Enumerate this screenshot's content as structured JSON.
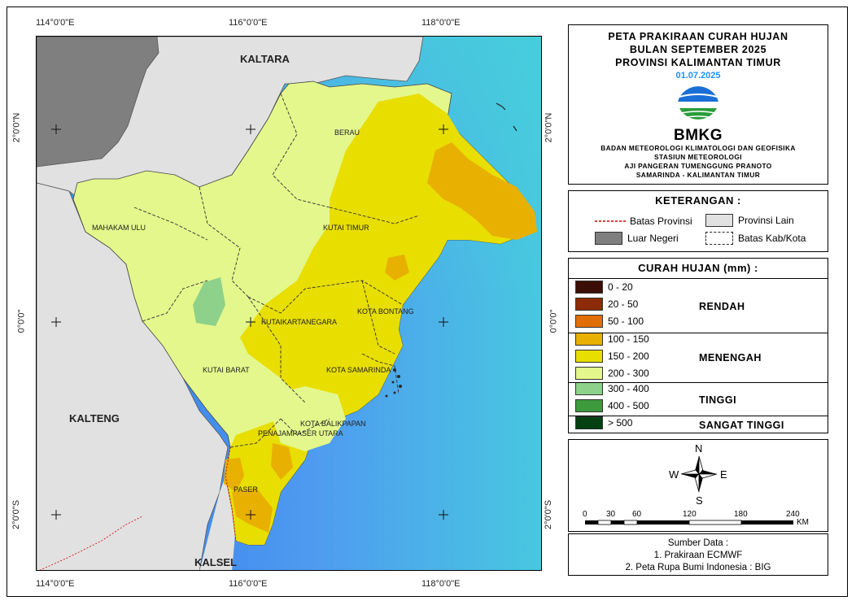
{
  "map": {
    "coords_top": [
      "114°0'0\"E",
      "116°0'0\"E",
      "118°0'0\"E"
    ],
    "coords_bottom": [
      "114°0'0\"E",
      "116°0'0\"E",
      "118°0'0\"E"
    ],
    "coords_left": [
      "2°0'0\"N",
      "0°0'0\"",
      "2°0'0\"S"
    ],
    "coords_right": [
      "2°0'0\"N",
      "0°0'0\"",
      "2°0'0\"S"
    ],
    "province_labels": {
      "kaltara": "KALTARA",
      "kalteng": "KALTENG",
      "kalsel": "KALSEL"
    },
    "regency_labels": {
      "berau": "BERAU",
      "mahakam_ulu": "MAHAKAM ULU",
      "kutai_timur": "KUTAI TIMUR",
      "kota_bontang": "KOTA BONTANG",
      "kutai_kartanegara": "KUTAIKARTANEGARA",
      "kutai_barat": "KUTAI BARAT",
      "kota_samarinda": "KOTA SAMARINDA",
      "kota_balikpapan": "KOTA BALIKPAPAN",
      "penajam_paser_utara": "PENAJAMPASER UTARA",
      "paser": "PASER"
    },
    "colors": {
      "sea": "#58a8f0",
      "other_province": "#e1e1e1",
      "foreign_country": "#828282"
    }
  },
  "title": {
    "line1": "PETA PRAKIRAAN CURAH HUJAN",
    "line2": "BULAN SEPTEMBER 2025",
    "line3": "PROVINSI KALIMANTAN TIMUR",
    "date": "01.07.2025",
    "logo_text": "BMKG",
    "inst1": "BADAN METEOROLOGI KLIMATOLOGI DAN GEOFISIKA",
    "inst2": "STASIUN METEOROLOGI",
    "inst3": "AJI PANGERAN TUMENGGUNG PRANOTO",
    "inst4": "SAMARINDA - KALIMANTAN TIMUR"
  },
  "keterangan": {
    "title": "KETERANGAN :",
    "batas_provinsi": "Batas Provinsi",
    "provinsi_lain": "Provinsi Lain",
    "luar_negeri": "Luar Negeri",
    "batas_kab": "Batas Kab/Kota"
  },
  "curah_hujan": {
    "title": "CURAH HUJAN (mm) :",
    "classes": [
      {
        "label": "0 - 20",
        "color": "#3b0f05"
      },
      {
        "label": "20 - 50",
        "color": "#8c2b06"
      },
      {
        "label": "50 - 100",
        "color": "#e26e06"
      },
      {
        "label": "100 - 150",
        "color": "#e8b000"
      },
      {
        "label": "150  - 200",
        "color": "#e8de00"
      },
      {
        "label": "200 - 300",
        "color": "#e4f78c"
      },
      {
        "label": "300 - 400",
        "color": "#8ed18a"
      },
      {
        "label": "400 - 500",
        "color": "#3d9a3d"
      },
      {
        "label": "> 500",
        "color": "#004012"
      }
    ],
    "categories": {
      "rendah": "RENDAH",
      "menengah": "MENENGAH",
      "tinggi": "TINGGI",
      "sangat_tinggi": "SANGAT TINGGI"
    }
  },
  "compass": {
    "n": "N",
    "s": "S",
    "e": "E",
    "w": "W"
  },
  "scale": {
    "ticks": [
      "0",
      "30",
      "60",
      "120",
      "180",
      "240"
    ],
    "unit": "KM"
  },
  "source": {
    "title": "Sumber Data :",
    "line1": "1. Prakiraan ECMWF",
    "line2": "2. Peta Rupa Bumi Indonesia : BIG"
  }
}
